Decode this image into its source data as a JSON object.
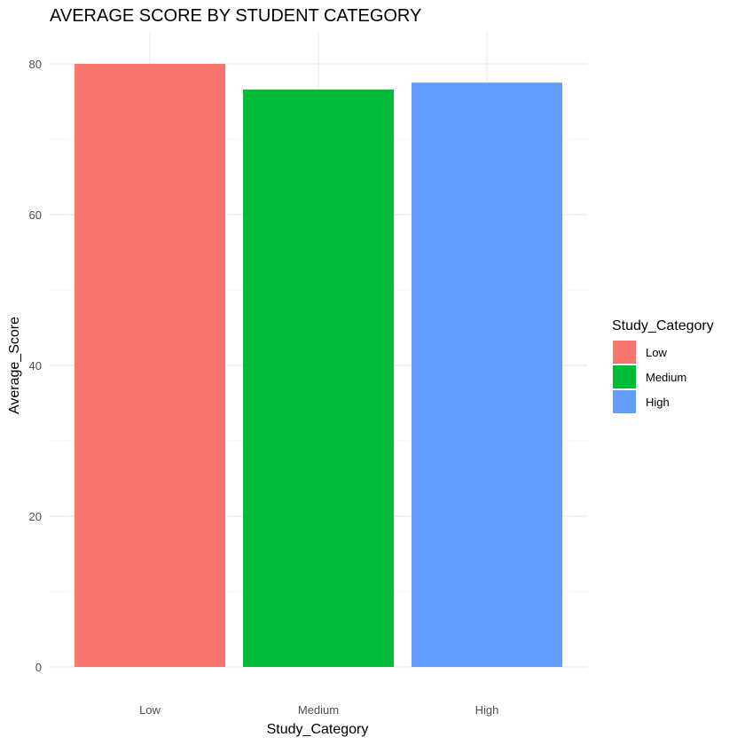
{
  "chart_data": {
    "type": "bar",
    "title": "AVERAGE SCORE BY STUDENT CATEGORY",
    "xlabel": "Study_Category",
    "ylabel": "Average_Score",
    "categories": [
      "Low",
      "Medium",
      "High"
    ],
    "values": [
      80,
      76.6,
      77.5
    ],
    "colors": [
      "#F8766D",
      "#00BA38",
      "#619CFF"
    ],
    "ylim": [
      0,
      80
    ],
    "yticks": [
      0,
      20,
      40,
      60,
      80
    ],
    "grid": true,
    "legend": {
      "title": "Study_Category",
      "placement": "right",
      "entries": [
        "Low",
        "Medium",
        "High"
      ]
    }
  }
}
